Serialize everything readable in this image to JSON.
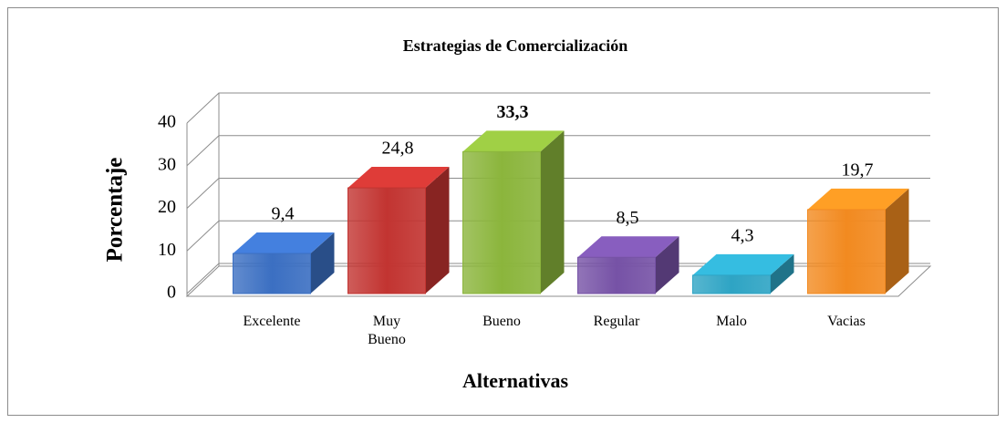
{
  "chart_data": {
    "type": "bar3d",
    "title": "Estrategias de Comercialización",
    "x_label": "Alternativas",
    "y_label": "Porcentaje",
    "categories": [
      "Excelente",
      "Muy Bueno",
      "Bueno",
      "Regular",
      "Malo",
      "Vacias"
    ],
    "values": [
      9.4,
      24.8,
      33.3,
      8.5,
      4.3,
      19.7
    ],
    "value_labels": [
      "9,4",
      "24,8",
      "33,3",
      "8,5",
      "4,3",
      "19,7"
    ],
    "colors": [
      "#3b6fc2",
      "#c23431",
      "#8bb53c",
      "#7652a6",
      "#2ea4c4",
      "#f28a20"
    ],
    "ylim": [
      0,
      40
    ],
    "yticks": [
      0,
      10,
      20,
      30,
      40
    ],
    "grid": true
  }
}
